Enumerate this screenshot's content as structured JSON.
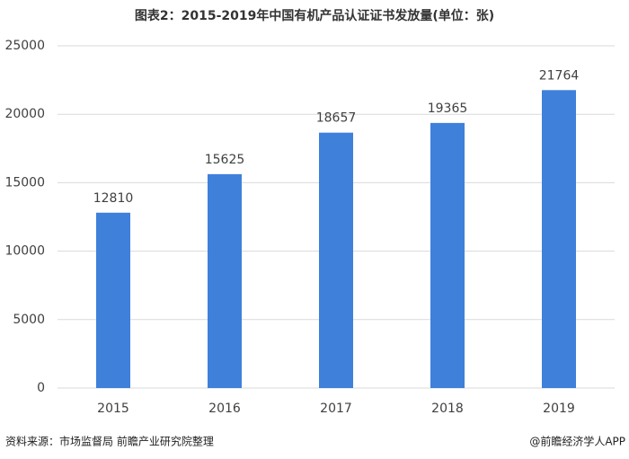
{
  "chart_data": {
    "type": "bar",
    "title": "图表2：2015-2019年中国有机产品认证证书发放量(单位：张)",
    "categories": [
      "2015",
      "2016",
      "2017",
      "2018",
      "2019"
    ],
    "values": [
      12810,
      15625,
      18657,
      19365,
      21764
    ],
    "color": "#3f80db",
    "ylim": [
      0,
      25000
    ],
    "yticks": [
      0,
      5000,
      10000,
      15000,
      20000,
      25000
    ],
    "grid": true,
    "source": "资料来源：市场监督局 前瞻产业研究院整理",
    "credit": "@前瞻经济学人APP"
  }
}
